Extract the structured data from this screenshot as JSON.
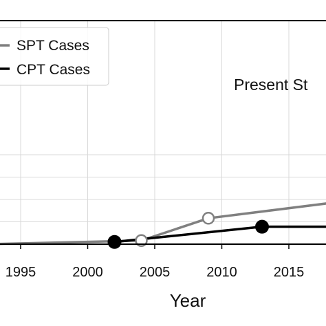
{
  "chart_data": {
    "type": "line",
    "xlabel": "Year",
    "ylabel": "",
    "title": "",
    "xlim": [
      1992.5,
      2019
    ],
    "ylim": [
      0,
      100
    ],
    "x_ticks": [
      "1995",
      "2000",
      "2005",
      "2010",
      "2015"
    ],
    "grid": true,
    "legend": {
      "placement": "top-left",
      "entries": [
        "SPT Cases",
        "CPT Cases"
      ]
    },
    "annotation": "Present St",
    "series": [
      {
        "name": "SPT Cases",
        "color": "#808080",
        "marker": "open-circle",
        "points": [
          [
            1992.5,
            0
          ],
          [
            2004,
            1.6
          ],
          [
            2009,
            11.6
          ],
          [
            2019,
            19.1
          ]
        ],
        "marked_x": [
          2004,
          2009,
          2019
        ]
      },
      {
        "name": "CPT Cases",
        "color": "#000000",
        "marker": "filled-circle",
        "points": [
          [
            2002,
            1.0
          ],
          [
            2013,
            7.8
          ],
          [
            2019,
            7.8
          ]
        ],
        "marked_x": [
          2002,
          2013
        ]
      }
    ]
  }
}
